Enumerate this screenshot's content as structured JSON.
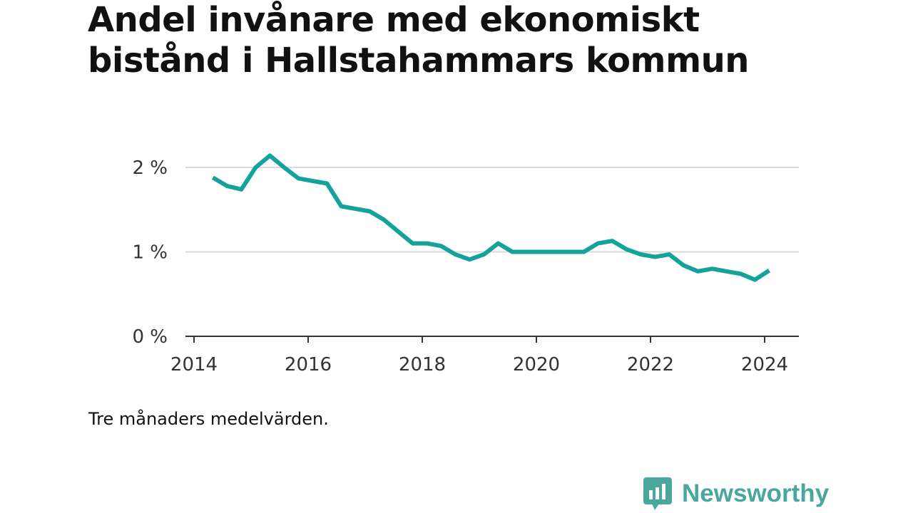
{
  "title": "Andel invånare med ekonomiskt bistånd i Hallstahammars kommun",
  "note": "Tre månaders medelvärden.",
  "brand": {
    "name": "Newsworthy",
    "icon": "bar-chart-speech-bubble-icon",
    "color": "#4aa79e"
  },
  "chart_data": {
    "type": "line",
    "line_color": "#14a39a",
    "grid": true,
    "ylim": [
      0,
      2.2
    ],
    "xlim": [
      2014,
      2025
    ],
    "x_ticks": [
      {
        "value": 2014,
        "label": "2014"
      },
      {
        "value": 2016,
        "label": "2016"
      },
      {
        "value": 2018,
        "label": "2018"
      },
      {
        "value": 2020,
        "label": "2020"
      },
      {
        "value": 2022,
        "label": "2022"
      },
      {
        "value": 2024,
        "label": "2024"
      }
    ],
    "y_ticks": [
      {
        "value": 0,
        "label": "0 %"
      },
      {
        "value": 1,
        "label": "1 %"
      },
      {
        "value": 2,
        "label": "2 %"
      }
    ],
    "series": [
      {
        "x": [
          2014.33,
          2014.58,
          2014.83,
          2015.08,
          2015.33,
          2015.58,
          2015.83,
          2016.08,
          2016.33,
          2016.58,
          2016.83,
          2017.08,
          2017.33,
          2017.58,
          2017.83,
          2018.08,
          2018.33,
          2018.58,
          2018.83,
          2019.08,
          2019.33,
          2019.58,
          2019.83,
          2020.08,
          2020.33,
          2020.58,
          2020.83,
          2021.08,
          2021.33,
          2021.58,
          2021.83,
          2022.08,
          2022.33,
          2022.58,
          2022.83,
          2023.08,
          2023.33,
          2023.58,
          2023.83,
          2024.08
        ],
        "y": [
          1.88,
          1.78,
          1.74,
          2.0,
          2.14,
          2.0,
          1.87,
          1.84,
          1.81,
          1.54,
          1.51,
          1.48,
          1.38,
          1.24,
          1.1,
          1.1,
          1.07,
          0.97,
          0.91,
          0.97,
          1.1,
          1.0,
          1.0,
          1.0,
          1.0,
          1.0,
          1.0,
          1.1,
          1.13,
          1.03,
          0.97,
          0.94,
          0.97,
          0.84,
          0.77,
          0.8,
          0.77,
          0.74,
          0.67,
          0.78
        ]
      }
    ]
  }
}
